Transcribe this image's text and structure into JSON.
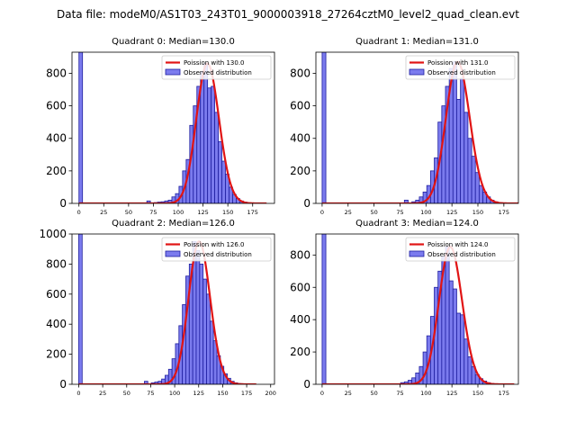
{
  "suptitle": "Data file: modeM0/AS1T03_243T01_9000003918_27264cztM0_level2_quad_clean.evt",
  "colors": {
    "hist_fill": "#7b7bee",
    "hist_edge": "#1f1fa0",
    "poisson": "#e11414"
  },
  "chart_data": [
    {
      "type": "bar",
      "title": "Quadrant 0: Median=130.0",
      "xlim": [
        -7,
        197
      ],
      "ylim": [
        0,
        930
      ],
      "xticks": [
        0,
        25,
        50,
        75,
        100,
        125,
        150,
        175
      ],
      "yticks": [
        0,
        200,
        400,
        600,
        800
      ],
      "legend_poisson": "Poission with 130.0",
      "legend_observed": "Observed distribution",
      "median": 130.0,
      "bin_width": 3.6,
      "bin_starts": [
        0,
        68.4,
        75.6,
        79.2,
        82.8,
        86.4,
        90,
        93.6,
        97.2,
        100.8,
        104.4,
        108,
        111.6,
        115.2,
        118.8,
        122.4,
        126,
        129.6,
        133.2,
        136.8,
        140.4,
        144,
        147.6,
        151.2,
        154.8,
        158.4,
        162,
        165.6,
        169.2
      ],
      "counts": [
        930,
        15,
        5,
        8,
        10,
        15,
        20,
        40,
        60,
        105,
        200,
        270,
        480,
        600,
        720,
        810,
        860,
        710,
        720,
        560,
        380,
        260,
        180,
        100,
        55,
        30,
        15,
        8,
        3
      ]
    },
    {
      "type": "bar",
      "title": "Quadrant 1: Median=131.0",
      "xlim": [
        -6,
        189
      ],
      "ylim": [
        0,
        930
      ],
      "xticks": [
        0,
        25,
        50,
        75,
        100,
        125,
        150,
        175
      ],
      "yticks": [
        0,
        200,
        400,
        600,
        800
      ],
      "legend_poisson": "Poission with 131.0",
      "legend_observed": "Observed distribution",
      "median": 131.0,
      "bin_width": 3.6,
      "bin_starts": [
        0,
        79.2,
        86.4,
        90,
        93.6,
        97.2,
        100.8,
        104.4,
        108,
        111.6,
        115.2,
        118.8,
        122.4,
        126,
        129.6,
        133.2,
        136.8,
        140.4,
        144,
        147.6,
        151.2,
        154.8,
        158.4,
        162,
        165.6,
        169.2
      ],
      "counts": [
        930,
        20,
        10,
        20,
        40,
        70,
        110,
        200,
        280,
        500,
        600,
        720,
        830,
        870,
        640,
        770,
        560,
        400,
        290,
        190,
        110,
        70,
        40,
        20,
        10,
        5
      ]
    },
    {
      "type": "bar",
      "title": "Quadrant 2: Median=126.0",
      "xlim": [
        -7,
        204
      ],
      "ylim": [
        0,
        1000
      ],
      "xticks": [
        0,
        25,
        50,
        75,
        100,
        125,
        150,
        175,
        200
      ],
      "yticks": [
        0,
        200,
        400,
        600,
        800,
        1000
      ],
      "legend_poisson": "Poission with 126.0",
      "legend_observed": "Observed distribution",
      "median": 126.0,
      "bin_width": 3.6,
      "bin_starts": [
        0,
        68.4,
        75.6,
        79.2,
        82.8,
        86.4,
        90,
        93.6,
        97.2,
        100.8,
        104.4,
        108,
        111.6,
        115.2,
        118.8,
        122.4,
        126,
        129.6,
        133.2,
        136.8,
        140.4,
        144,
        147.6,
        151.2,
        154.8,
        158.4,
        162,
        165.6
      ],
      "counts": [
        1000,
        20,
        10,
        15,
        20,
        35,
        60,
        100,
        170,
        270,
        390,
        530,
        720,
        800,
        950,
        890,
        800,
        700,
        600,
        420,
        290,
        190,
        120,
        70,
        40,
        20,
        10,
        5
      ]
    },
    {
      "type": "bar",
      "title": "Quadrant 3: Median=124.0",
      "xlim": [
        -6,
        189
      ],
      "ylim": [
        0,
        930
      ],
      "xticks": [
        0,
        25,
        50,
        75,
        100,
        125,
        150,
        175
      ],
      "yticks": [
        0,
        200,
        400,
        600,
        800
      ],
      "legend_poisson": "Poission with 124.0",
      "legend_observed": "Observed distribution",
      "median": 124.0,
      "bin_width": 3.6,
      "bin_starts": [
        0,
        75.6,
        79.2,
        82.8,
        86.4,
        90,
        93.6,
        97.2,
        100.8,
        104.4,
        108,
        111.6,
        115.2,
        118.8,
        122.4,
        126,
        129.6,
        133.2,
        136.8,
        140.4,
        144,
        147.6,
        151.2,
        154.8,
        158.4,
        162,
        165.6
      ],
      "counts": [
        930,
        10,
        15,
        25,
        40,
        70,
        110,
        200,
        300,
        420,
        600,
        700,
        790,
        850,
        640,
        590,
        440,
        430,
        280,
        170,
        110,
        60,
        35,
        20,
        10,
        5,
        3
      ]
    }
  ]
}
